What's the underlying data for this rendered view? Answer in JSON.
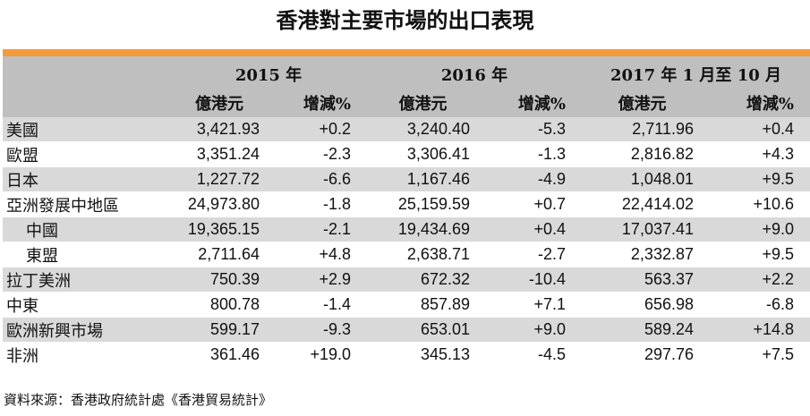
{
  "title": "香港對主要市場的出口表現",
  "header": {
    "years": [
      "2015 年",
      "2016 年",
      "2017 年 1 月至 10 月"
    ],
    "col_value": "億港元",
    "col_change": "增減%"
  },
  "rows": [
    {
      "label": "美國",
      "v2015": "3,421.93",
      "p2015": "+0.2",
      "v2016": "3,240.40",
      "p2016": "-5.3",
      "v2017": "2,711.96",
      "p2017": "+0.4",
      "shade": true,
      "indent": false
    },
    {
      "label": "歐盟",
      "v2015": "3,351.24",
      "p2015": "-2.3",
      "v2016": "3,306.41",
      "p2016": "-1.3",
      "v2017": "2,816.82",
      "p2017": "+4.3",
      "shade": false,
      "indent": false
    },
    {
      "label": "日本",
      "v2015": "1,227.72",
      "p2015": "-6.6",
      "v2016": "1,167.46",
      "p2016": "-4.9",
      "v2017": "1,048.01",
      "p2017": "+9.5",
      "shade": true,
      "indent": false
    },
    {
      "label": "亞洲發展中地區",
      "v2015": "24,973.80",
      "p2015": "-1.8",
      "v2016": "25,159.59",
      "p2016": "+0.7",
      "v2017": "22,414.02",
      "p2017": "+10.6",
      "shade": false,
      "indent": false
    },
    {
      "label": "中國",
      "v2015": "19,365.15",
      "p2015": "-2.1",
      "v2016": "19,434.69",
      "p2016": "+0.4",
      "v2017": "17,037.41",
      "p2017": "+9.0",
      "shade": true,
      "indent": true
    },
    {
      "label": "東盟",
      "v2015": "2,711.64",
      "p2015": "+4.8",
      "v2016": "2,638.71",
      "p2016": "-2.7",
      "v2017": "2,332.87",
      "p2017": "+9.5",
      "shade": false,
      "indent": true
    },
    {
      "label": "拉丁美洲",
      "v2015": "750.39",
      "p2015": "+2.9",
      "v2016": "672.32",
      "p2016": "-10.4",
      "v2017": "563.37",
      "p2017": "+2.2",
      "shade": true,
      "indent": false
    },
    {
      "label": "中東",
      "v2015": "800.78",
      "p2015": "-1.4",
      "v2016": "857.89",
      "p2016": "+7.1",
      "v2017": "656.98",
      "p2017": "-6.8",
      "shade": false,
      "indent": false
    },
    {
      "label": "歐洲新興市場",
      "v2015": "599.17",
      "p2015": "-9.3",
      "v2016": "653.01",
      "p2016": "+9.0",
      "v2017": "589.24",
      "p2017": "+14.8",
      "shade": true,
      "indent": false
    },
    {
      "label": "非洲",
      "v2015": "361.46",
      "p2015": "+19.0",
      "v2016": "345.13",
      "p2016": "-4.5",
      "v2017": "297.76",
      "p2017": "+7.5",
      "shade": false,
      "indent": false
    }
  ],
  "source": "資料來源：香港政府統計處《香港貿易統計》",
  "colors": {
    "accent_bar": "#f39a3b",
    "header_bg": "#bfbfbf",
    "row_shade": "#d9d9d9"
  }
}
